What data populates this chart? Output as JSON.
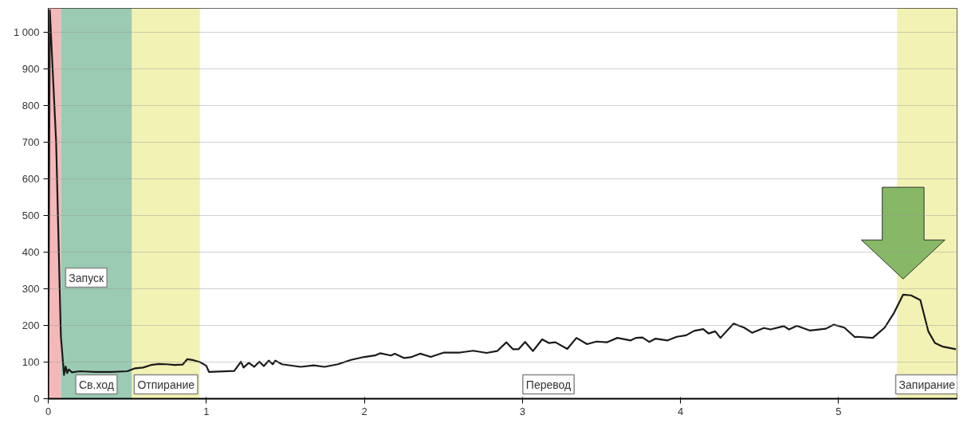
{
  "chart_data": {
    "type": "line",
    "xlim": [
      0,
      5.75
    ],
    "ylim": [
      0,
      1065
    ],
    "xticks": [
      0,
      1,
      2,
      3,
      4,
      5
    ],
    "yticks": [
      0,
      100,
      200,
      300,
      400,
      500,
      600,
      700,
      800,
      900,
      {
        "value": 1000,
        "label": "1 000"
      }
    ],
    "grid": "y",
    "marker": "none",
    "line_style": "solid",
    "series": [
      {
        "color": "#1a1a1a",
        "x": [
          0,
          0.01,
          0.05,
          0.08,
          0.1,
          0.11,
          0.12,
          0.13,
          0.15,
          0.2,
          0.3,
          0.4,
          0.5,
          0.55,
          0.6,
          0.65,
          0.7,
          0.75,
          0.8,
          0.85,
          0.88,
          0.92,
          0.96,
          1.0,
          1.017,
          1.177,
          1.219,
          1.236,
          1.269,
          1.303,
          1.336,
          1.364,
          1.395,
          1.42,
          1.437,
          1.479,
          1.596,
          1.68,
          1.748,
          1.832,
          1.916,
          2.0,
          2.067,
          2.1,
          2.168,
          2.193,
          2.252,
          2.3,
          2.353,
          2.42,
          2.504,
          2.605,
          2.689,
          2.773,
          2.84,
          2.899,
          2.941,
          2.975,
          3.017,
          3.067,
          3.125,
          3.167,
          3.209,
          3.284,
          3.342,
          3.409,
          3.468,
          3.535,
          3.601,
          3.685,
          3.718,
          3.76,
          3.802,
          3.843,
          3.919,
          3.977,
          4.036,
          4.086,
          4.144,
          4.178,
          4.22,
          4.253,
          4.336,
          4.403,
          4.453,
          4.528,
          4.57,
          4.654,
          4.687,
          4.737,
          4.82,
          4.92,
          4.97,
          5.037,
          5.104,
          5.117,
          5.217,
          5.292,
          5.351,
          5.409,
          5.459,
          5.518,
          5.568,
          5.61,
          5.66,
          5.743
        ],
        "values": [
          0,
          1060,
          700,
          170,
          65,
          88,
          70,
          80,
          72,
          75,
          73,
          73,
          75,
          83,
          85,
          92,
          95,
          94,
          92,
          93,
          108,
          105,
          100,
          90,
          73,
          76,
          101,
          85,
          98,
          87,
          101,
          89,
          104,
          94,
          104,
          94,
          87,
          91,
          87,
          94,
          106,
          114,
          118,
          124,
          118,
          123,
          111,
          114,
          123,
          114,
          126,
          126,
          131,
          125,
          130,
          154,
          135,
          135,
          155,
          130,
          162,
          152,
          154,
          136,
          166,
          149,
          156,
          154,
          166,
          159,
          166,
          167,
          155,
          164,
          159,
          169,
          173,
          185,
          190,
          178,
          184,
          166,
          205,
          194,
          180,
          193,
          189,
          198,
          189,
          199,
          186,
          191,
          202,
          194,
          168,
          169,
          166,
          194,
          234,
          284,
          282,
          269,
          184,
          152,
          142,
          135
        ]
      }
    ],
    "bands": [
      {
        "axis": "x",
        "from": 0,
        "to": 0.08,
        "label": "Запуск",
        "color": "#f4b8b8"
      },
      {
        "axis": "x",
        "from": 0.08,
        "to": 0.53,
        "label": "Св.ход",
        "color": "#9bcbb3"
      },
      {
        "axis": "x",
        "from": 0.53,
        "to": 0.96,
        "label": "Отпирание",
        "color": "#f2f2b4"
      },
      {
        "axis": "x",
        "from": 0.96,
        "to": 5.37,
        "label": "Перевод",
        "color": "#ffffff"
      },
      {
        "axis": "x",
        "from": 5.37,
        "to": 5.75,
        "label": "Запирание",
        "color": "#f2f2b4"
      }
    ]
  }
}
